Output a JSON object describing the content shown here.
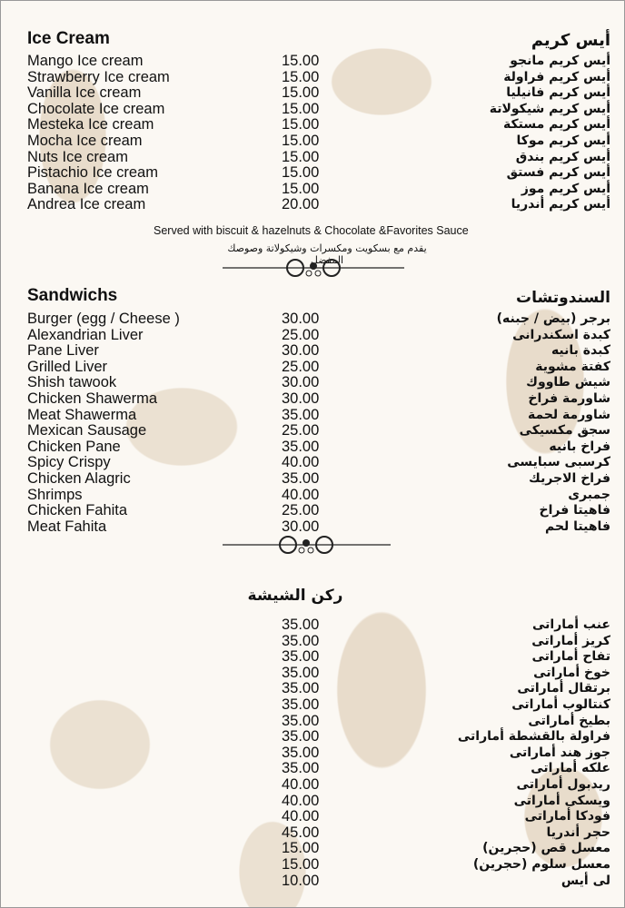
{
  "ice_cream": {
    "title_en": "Ice Cream",
    "title_ar": "أيس كريم",
    "items": [
      {
        "en": "Mango Ice cream",
        "price": "15.00",
        "ar": "أيس كريم مانجو"
      },
      {
        "en": "Strawberry Ice cream",
        "price": "15.00",
        "ar": "أيس كريم فراولة"
      },
      {
        "en": "Vanilla Ice cream",
        "price": "15.00",
        "ar": "أيس كريم فانيليا"
      },
      {
        "en": "Chocolate Ice cream",
        "price": "15.00",
        "ar": "أيس كريم شيكولاتة"
      },
      {
        "en": "Mesteka Ice cream",
        "price": "15.00",
        "ar": "أيس كريم مستكة"
      },
      {
        "en": "Mocha Ice cream",
        "price": "15.00",
        "ar": "أيس كريم موكا"
      },
      {
        "en": "Nuts Ice cream",
        "price": "15.00",
        "ar": "أيس كريم بندق"
      },
      {
        "en": "Pistachio Ice cream",
        "price": "15.00",
        "ar": "أيس كريم فستق"
      },
      {
        "en": "Banana Ice cream",
        "price": "15.00",
        "ar": "أيس كريم موز"
      },
      {
        "en": "Andrea Ice cream",
        "price": "20.00",
        "ar": "أيس كريم أندريا"
      }
    ],
    "note_en": "Served with biscuit & hazelnuts & Chocolate &Favorites Sauce",
    "note_ar": "يقدم مع بسكويت ومكسرات وشيكولاتة وصوصك المفضل"
  },
  "sandwiches": {
    "title_en": "Sandwichs",
    "title_ar": "السندوتشات",
    "items": [
      {
        "en": "Burger (egg / Cheese )",
        "price": "30.00",
        "ar": "برجر (بيض / جبنه)"
      },
      {
        "en": "Alexandrian Liver",
        "price": "25.00",
        "ar": "كبدة اسكندرانى"
      },
      {
        "en": "Pane Liver",
        "price": "30.00",
        "ar": "كبدة بانيه"
      },
      {
        "en": "Grilled Liver",
        "price": "25.00",
        "ar": "كفتة مشوية"
      },
      {
        "en": "Shish tawook",
        "price": "30.00",
        "ar": "شيش طاووك"
      },
      {
        "en": "Chicken Shawerma",
        "price": "30.00",
        "ar": "شاورمة فراخ"
      },
      {
        "en": "Meat Shawerma",
        "price": "35.00",
        "ar": "شاورمة لحمة"
      },
      {
        "en": "Mexican Sausage",
        "price": "25.00",
        "ar": "سجق مكسيكى"
      },
      {
        "en": "Chicken Pane",
        "price": "35.00",
        "ar": "فراخ بانيه"
      },
      {
        "en": "Spicy Crispy",
        "price": "40.00",
        "ar": "كرسبى سبايسى"
      },
      {
        "en": "Chicken Alagric",
        "price": "35.00",
        "ar": "فراخ الاجريك"
      },
      {
        "en": "Shrimps",
        "price": "40.00",
        "ar": "جمبرى"
      },
      {
        "en": "Chicken Fahita",
        "price": "25.00",
        "ar": "فاهيتا فراخ"
      },
      {
        "en": "Meat Fahita",
        "price": "30.00",
        "ar": "فاهيتا لحم"
      }
    ]
  },
  "shisha": {
    "title_ar": "ركن الشيشة",
    "items": [
      {
        "price": "35.00",
        "ar": "عنب أماراتى"
      },
      {
        "price": "35.00",
        "ar": "كريز أماراتى"
      },
      {
        "price": "35.00",
        "ar": "تفاح أماراتى"
      },
      {
        "price": "35.00",
        "ar": "خوخ أماراتى"
      },
      {
        "price": "35.00",
        "ar": "برتقال أماراتى"
      },
      {
        "price": "35.00",
        "ar": "كنتالوب أماراتى"
      },
      {
        "price": "35.00",
        "ar": "بطيخ أماراتى"
      },
      {
        "price": "35.00",
        "ar": "فراولة بالقشطة أماراتى"
      },
      {
        "price": "35.00",
        "ar": "جوز هند أماراتى"
      },
      {
        "price": "35.00",
        "ar": "علكه أماراتى"
      },
      {
        "price": "40.00",
        "ar": "ريدبول أماراتى"
      },
      {
        "price": "40.00",
        "ar": "ويسكى أماراتى"
      },
      {
        "price": "40.00",
        "ar": "فودكا أماراتى"
      },
      {
        "price": "45.00",
        "ar": "حجر أندريا"
      },
      {
        "price": "15.00",
        "ar": "معسل قص (حجرين)"
      },
      {
        "price": "15.00",
        "ar": "معسل سلوم (حجرين)"
      },
      {
        "price": "10.00",
        "ar": "لى أيس"
      }
    ]
  }
}
